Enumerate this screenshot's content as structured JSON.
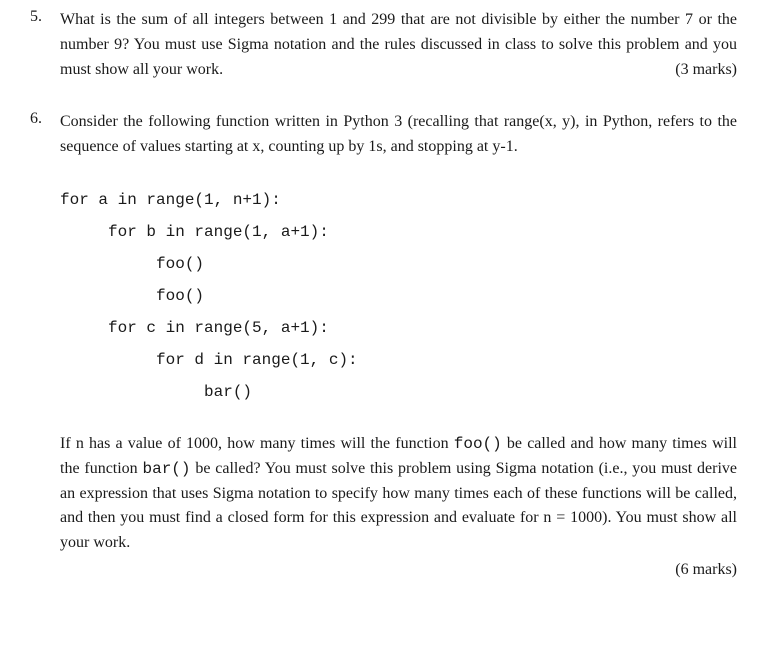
{
  "q5": {
    "number": "5.",
    "text": "What is the sum of all integers between 1 and 299 that are not divisible by either the number 7 or the number 9? You must use Sigma notation and the rules discussed in class to solve this problem and you must show all your work.",
    "marks": "(3 marks)"
  },
  "q6": {
    "number": "6.",
    "intro": "Consider the following function written in Python 3 (recalling that range(x, y), in Python, refers to the sequence of values starting at x, counting up by 1s, and stopping at y-1.",
    "code": "for a in range(1, n+1):\n     for b in range(1, a+1):\n          foo()\n          foo()\n     for c in range(5, a+1):\n          for d in range(1, c):\n               bar()",
    "followup_p1": "If n has a value of 1000, how many times will the function ",
    "foo": "foo()",
    "followup_p2": " be called and how many times will the function ",
    "bar": "bar()",
    "followup_p3": " be called? You must solve this problem using Sigma notation (i.e., you must derive an expression that uses Sigma notation to specify how many times each of these functions will be called, and then you must find a closed form for this expression and evaluate for n = 1000). You must show all your work.",
    "marks": "(6 marks)"
  }
}
